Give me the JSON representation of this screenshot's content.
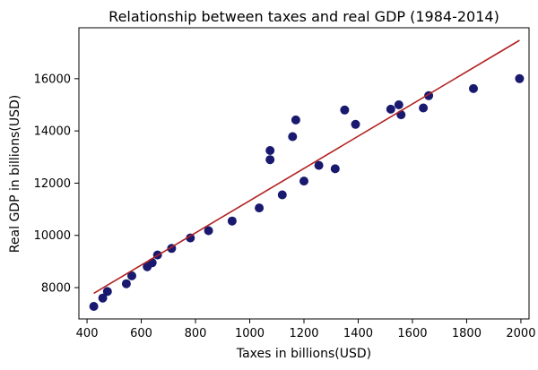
{
  "chart_data": {
    "type": "scatter",
    "title": "Relationship between taxes and real GDP (1984-2014)",
    "xlabel": "Taxes in billions(USD)",
    "ylabel": "Real GDP in billions(USD)",
    "xlim": [
      370,
      2030
    ],
    "ylim": [
      6800,
      17950
    ],
    "xticks": [
      400,
      600,
      800,
      1000,
      1200,
      1400,
      1600,
      1800,
      2000
    ],
    "yticks": [
      8000,
      10000,
      12000,
      14000,
      16000
    ],
    "grid": false,
    "legend": "none",
    "colors": {
      "points": "#191970",
      "fit_line": "#b22222",
      "axes": "#000000"
    },
    "points": [
      {
        "x": 425,
        "y": 7280
      },
      {
        "x": 458,
        "y": 7600
      },
      {
        "x": 475,
        "y": 7850
      },
      {
        "x": 545,
        "y": 8150
      },
      {
        "x": 565,
        "y": 8450
      },
      {
        "x": 622,
        "y": 8800
      },
      {
        "x": 640,
        "y": 8950
      },
      {
        "x": 660,
        "y": 9250
      },
      {
        "x": 712,
        "y": 9500
      },
      {
        "x": 781,
        "y": 9900
      },
      {
        "x": 848,
        "y": 10180
      },
      {
        "x": 935,
        "y": 10550
      },
      {
        "x": 1035,
        "y": 11050
      },
      {
        "x": 1075,
        "y": 13250
      },
      {
        "x": 1075,
        "y": 12900
      },
      {
        "x": 1120,
        "y": 11550
      },
      {
        "x": 1158,
        "y": 13780
      },
      {
        "x": 1170,
        "y": 14420
      },
      {
        "x": 1200,
        "y": 12080
      },
      {
        "x": 1255,
        "y": 12680
      },
      {
        "x": 1315,
        "y": 12550
      },
      {
        "x": 1350,
        "y": 14800
      },
      {
        "x": 1390,
        "y": 14250
      },
      {
        "x": 1520,
        "y": 14830
      },
      {
        "x": 1550,
        "y": 15000
      },
      {
        "x": 1558,
        "y": 14620
      },
      {
        "x": 1640,
        "y": 14880
      },
      {
        "x": 1660,
        "y": 15350
      },
      {
        "x": 1825,
        "y": 15620
      },
      {
        "x": 1995,
        "y": 16000
      }
    ],
    "fit_line": {
      "x": [
        425,
        1995
      ],
      "y": [
        7780,
        17470
      ]
    }
  }
}
